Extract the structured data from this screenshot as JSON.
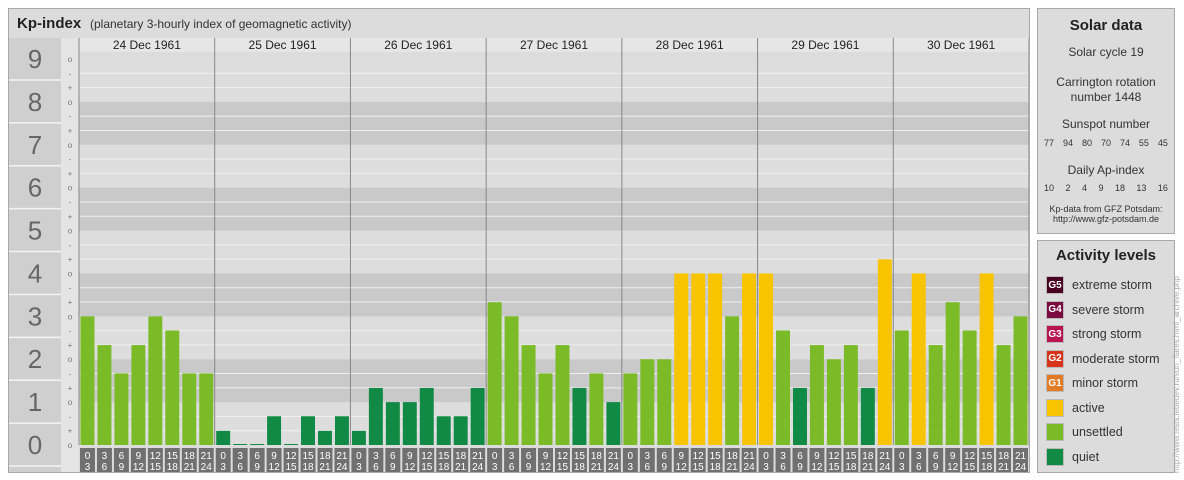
{
  "header": {
    "title": "Kp-index",
    "subtitle": "(planetary 3-hourly index of geomagnetic activity)"
  },
  "chart_data": {
    "type": "bar",
    "title": "Kp-index",
    "subtitle": "(planetary 3-hourly index of geomagnetic activity)",
    "days": [
      "24 Dec 1961",
      "25 Dec 1961",
      "26 Dec 1961",
      "27 Dec 1961",
      "28 Dec 1961",
      "29 Dec 1961",
      "30 Dec 1961"
    ],
    "hour_start_labels": [
      "0",
      "3",
      "6",
      "9",
      "12",
      "15",
      "18",
      "21"
    ],
    "hour_end_labels": [
      "3",
      "6",
      "9",
      "12",
      "15",
      "18",
      "21",
      "24"
    ],
    "y_major_ticks": [
      "0",
      "1",
      "2",
      "3",
      "4",
      "5",
      "6",
      "7",
      "8",
      "9"
    ],
    "y_minor_ticks": [
      "o",
      "+",
      "-"
    ],
    "ylim": [
      0,
      9
    ],
    "values": [
      [
        3.0,
        2.33,
        1.67,
        2.33,
        3.0,
        2.67,
        1.67,
        1.67
      ],
      [
        0.33,
        0.0,
        0.0,
        0.67,
        0.0,
        0.67,
        0.33,
        0.67
      ],
      [
        0.33,
        1.33,
        1.0,
        1.0,
        1.33,
        0.67,
        0.67,
        1.33
      ],
      [
        3.33,
        3.0,
        2.33,
        1.67,
        2.33,
        1.33,
        1.67,
        1.0
      ],
      [
        1.67,
        2.0,
        2.0,
        4.0,
        4.0,
        4.0,
        3.0,
        4.0
      ],
      [
        4.0,
        2.67,
        1.33,
        2.33,
        2.0,
        2.33,
        1.33,
        4.33
      ],
      [
        2.67,
        4.0,
        2.33,
        3.33,
        2.67,
        4.0,
        2.33,
        3.0
      ]
    ],
    "colors": {
      "quiet": "#118a45",
      "unsettled": "#7cbb28",
      "active": "#f8c400",
      "G1": "#e27b25",
      "G2": "#d7341a",
      "G3": "#b8144f",
      "G4": "#7a0a3f",
      "G5": "#4a0120"
    }
  },
  "solar": {
    "title": "Solar data",
    "cycle": "Solar cycle 19",
    "carrington_line1": "Carrington rotation",
    "carrington_line2": "number 1448",
    "sunspot_label": "Sunspot number",
    "sunspot_values": [
      "77",
      "94",
      "80",
      "70",
      "74",
      "55",
      "45"
    ],
    "ap_label": "Daily Ap-index",
    "ap_values": [
      "10",
      "2",
      "4",
      "9",
      "18",
      "13",
      "16"
    ],
    "source_line1": "Kp-data from GFZ Potsdam:",
    "source_line2": "http://www.gfz-potsdam.de"
  },
  "activity": {
    "title": "Activity levels",
    "levels": [
      {
        "badge": "G5",
        "label": "extreme storm",
        "color": "#4a0120"
      },
      {
        "badge": "G4",
        "label": "severe storm",
        "color": "#7a0a3f"
      },
      {
        "badge": "G3",
        "label": "strong storm",
        "color": "#b8144f"
      },
      {
        "badge": "G2",
        "label": "moderate storm",
        "color": "#d7341a"
      },
      {
        "badge": "G1",
        "label": "minor storm",
        "color": "#e27b25"
      },
      {
        "badge": "",
        "label": "active",
        "color": "#f8c400"
      },
      {
        "badge": "",
        "label": "unsettled",
        "color": "#7cbb28"
      },
      {
        "badge": "",
        "label": "quiet",
        "color": "#118a45"
      }
    ]
  },
  "watermark": "http://www.tesis.lebedev.ru/sun_flares.html_archive.php"
}
